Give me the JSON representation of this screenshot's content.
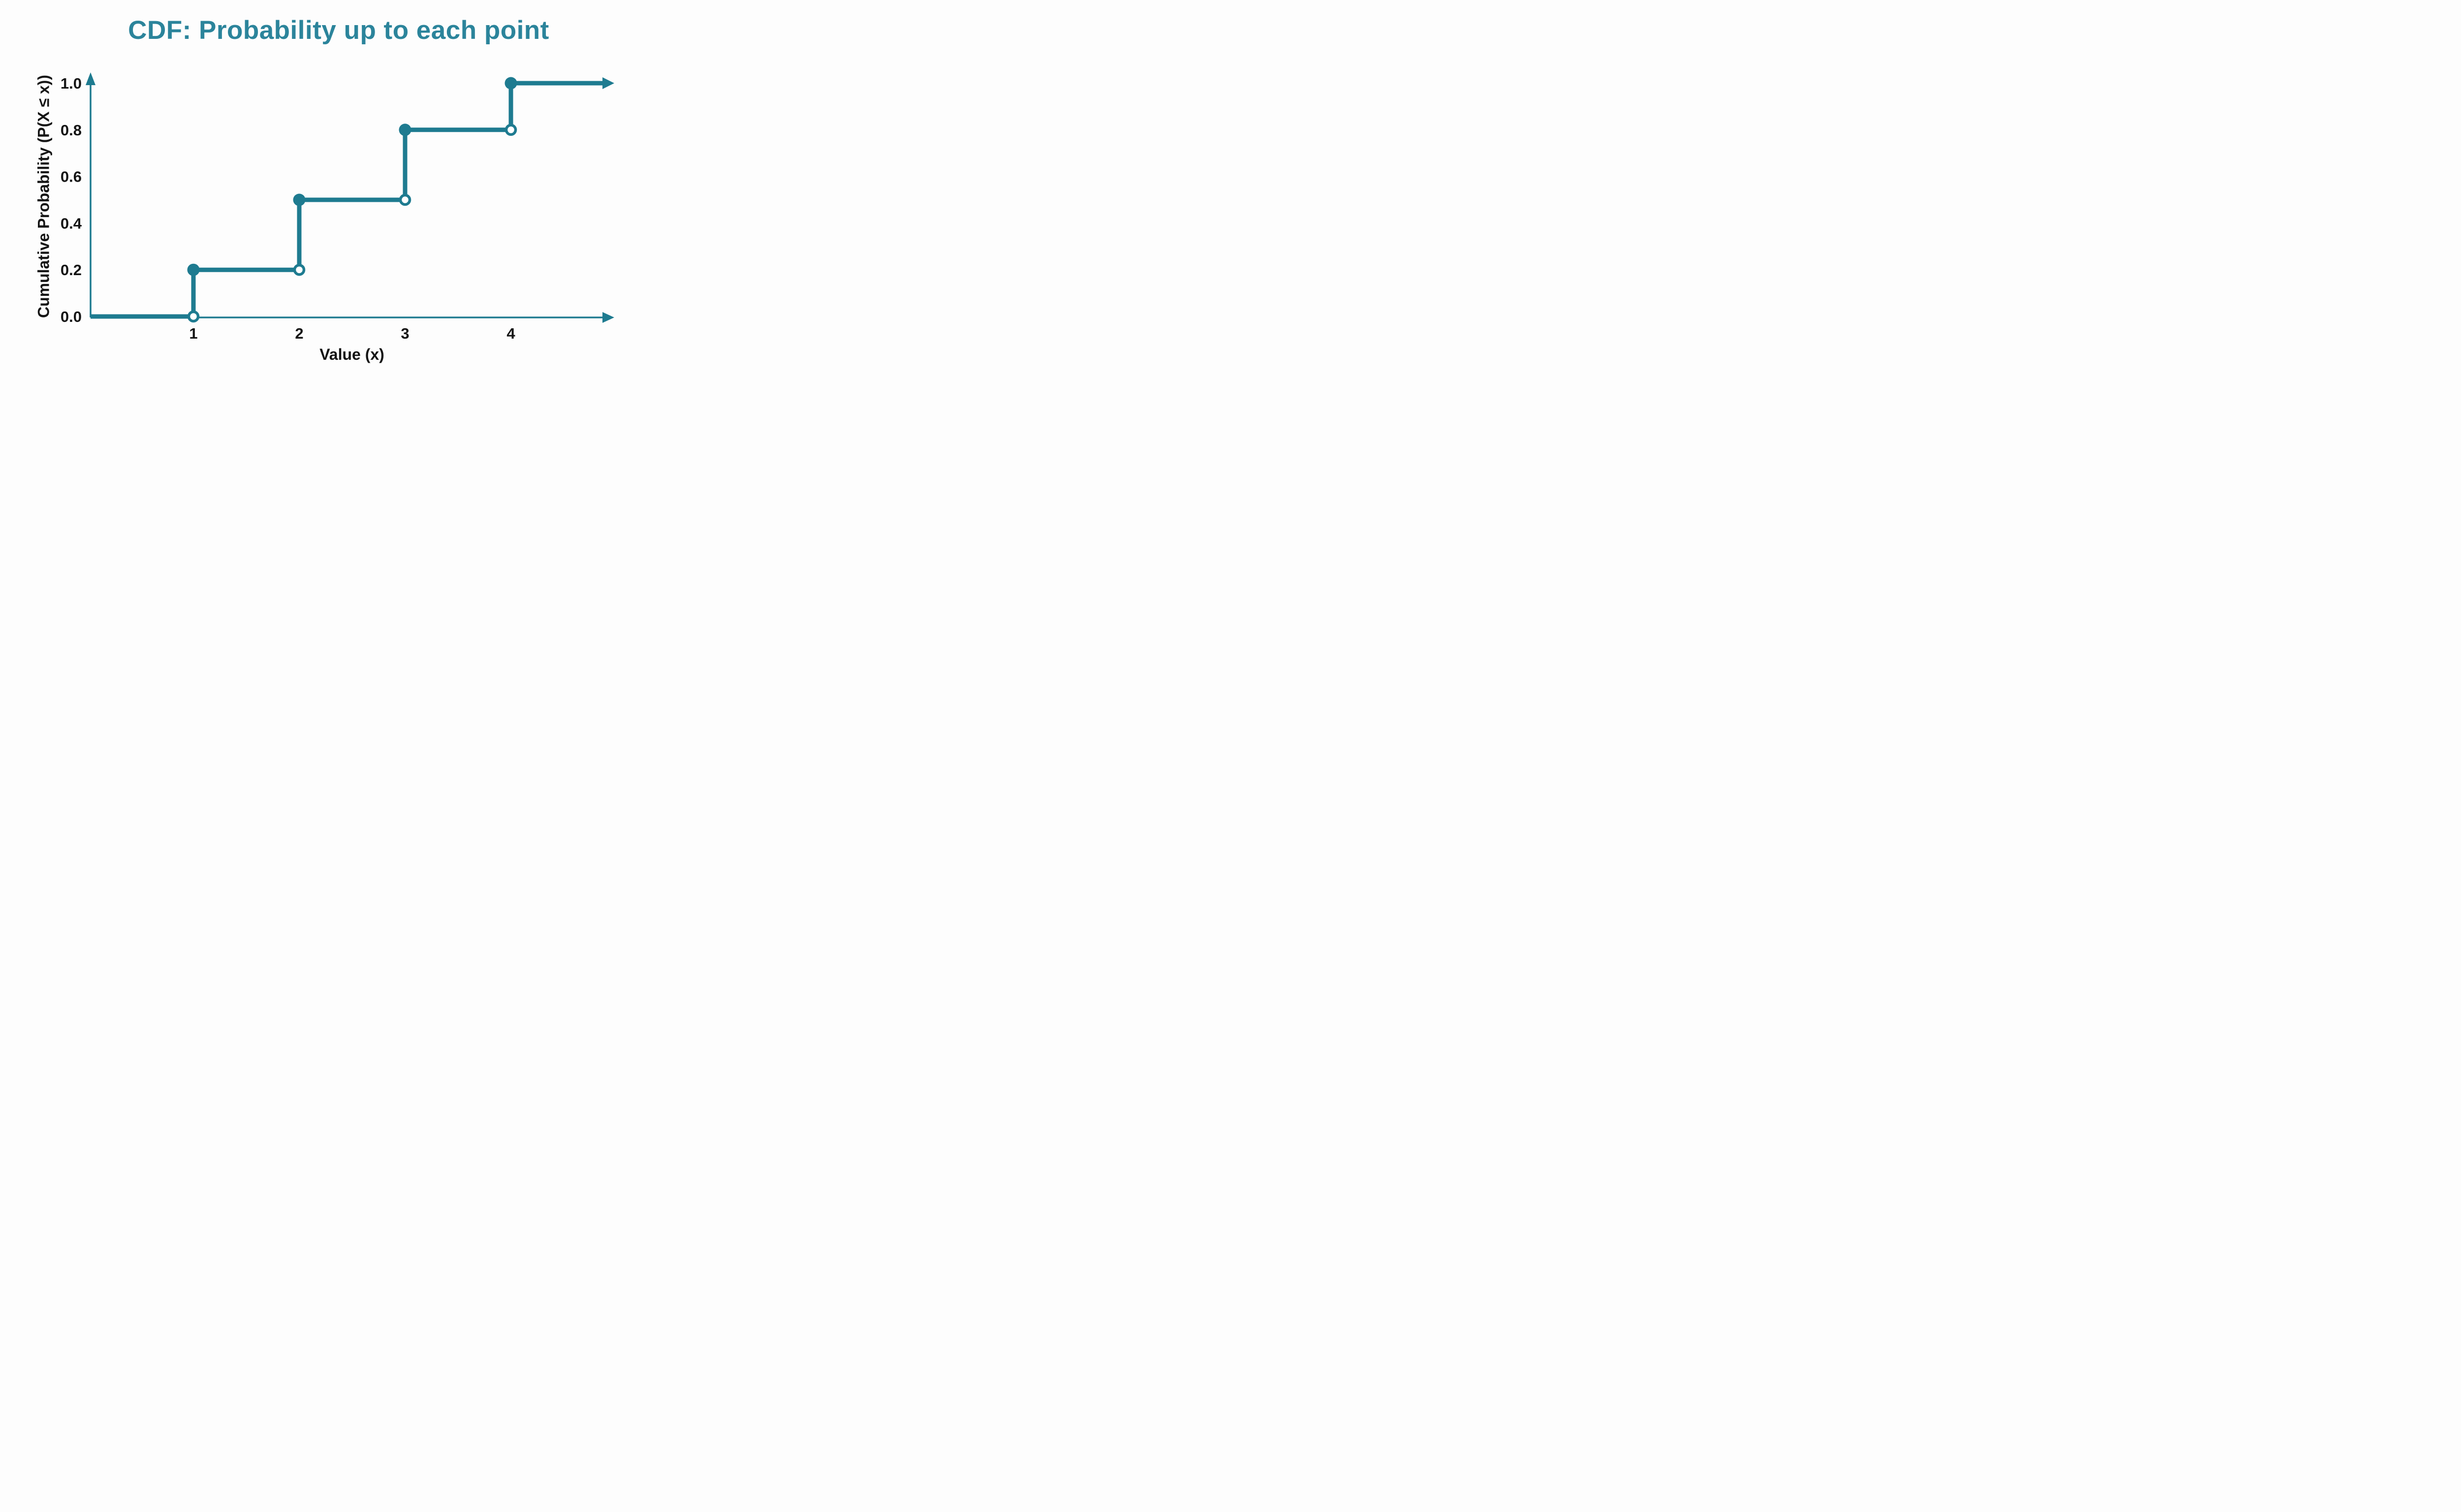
{
  "chart_data": {
    "type": "step",
    "title": "CDF: Probability up to each point",
    "xlabel": "Value (x)",
    "ylabel": "Cumulative Probability (P(X ≤ x))",
    "x_values": [
      1,
      2,
      3,
      4
    ],
    "cdf_values": [
      0.2,
      0.5,
      0.8,
      1.0
    ],
    "closed_points": [
      [
        1,
        0.2
      ],
      [
        2,
        0.5
      ],
      [
        3,
        0.8
      ],
      [
        4,
        1.0
      ]
    ],
    "open_points": [
      [
        1,
        0.0
      ],
      [
        2,
        0.2
      ],
      [
        3,
        0.5
      ],
      [
        4,
        0.8
      ]
    ],
    "xticks": [
      "1",
      "2",
      "3",
      "4"
    ],
    "yticks": [
      "0.0",
      "0.2",
      "0.4",
      "0.6",
      "0.8",
      "1.0"
    ],
    "xlim": [
      0,
      5
    ],
    "ylim": [
      0,
      1.05
    ],
    "grid": false,
    "legend": false,
    "axis_arrows": true,
    "colors": {
      "line": "#1e7b90",
      "axis": "#1e7b90",
      "title": "#2b849b",
      "text": "#141414",
      "background": "#fdfdfd",
      "marker_fill": "#ffffff"
    }
  }
}
